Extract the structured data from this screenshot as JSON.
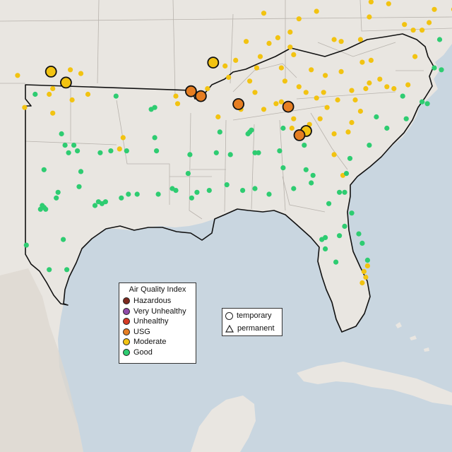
{
  "colors": {
    "water": "#c9d6e0",
    "land": "#e9e6e1",
    "terrain": "#dcd7cf",
    "state_border": "#b8b3ad",
    "outline": "#111111",
    "Hazardous": "#7e2a1f",
    "Very Unhealthy": "#8f4aa8",
    "Unhealthy": "#d63b24",
    "USG": "#e67e22",
    "Moderate": "#f2c311",
    "Good": "#2ecc71"
  },
  "aqi_legend": {
    "title": "Air Quality Index",
    "items": [
      {
        "label": "Hazardous",
        "color": "#7e2a1f"
      },
      {
        "label": "Very Unhealthy",
        "color": "#8f4aa8"
      },
      {
        "label": "Unhealthy",
        "color": "#d63b24"
      },
      {
        "label": "USG",
        "color": "#e67e22"
      },
      {
        "label": "Moderate",
        "color": "#f2c311"
      },
      {
        "label": "Good",
        "color": "#2ecc71"
      }
    ]
  },
  "shape_legend": {
    "items": [
      {
        "label": "temporary",
        "shape": "circle"
      },
      {
        "label": "permanent",
        "shape": "triangle"
      }
    ]
  },
  "monitors": {
    "large": [
      {
        "cat": "Moderate",
        "lon": -98.1,
        "lat": 36.7
      },
      {
        "cat": "Moderate",
        "lon": -97.25,
        "lat": 36.12
      },
      {
        "cat": "Moderate",
        "lon": -88.88,
        "lat": 37.18
      },
      {
        "cat": "USG",
        "lon": -90.14,
        "lat": 35.66
      },
      {
        "cat": "USG",
        "lon": -89.58,
        "lat": 35.4
      },
      {
        "cat": "USG",
        "lon": -87.44,
        "lat": 34.98
      },
      {
        "cat": "USG",
        "lon": -84.61,
        "lat": 34.84
      },
      {
        "cat": "Moderate",
        "lon": -83.59,
        "lat": 33.55
      },
      {
        "cat": "USG",
        "lon": -83.97,
        "lat": 33.33
      }
    ],
    "small": [
      {
        "cat": "Moderate",
        "lon": -100.0,
        "lat": 36.5
      },
      {
        "cat": "Moderate",
        "lon": -98.2,
        "lat": 35.5
      },
      {
        "cat": "Moderate",
        "lon": -98.0,
        "lat": 35.8
      },
      {
        "cat": "Moderate",
        "lon": -99.6,
        "lat": 34.8
      },
      {
        "cat": "Moderate",
        "lon": -98.0,
        "lat": 34.5
      },
      {
        "cat": "Moderate",
        "lon": -96.0,
        "lat": 35.5
      },
      {
        "cat": "Moderate",
        "lon": -96.4,
        "lat": 36.6
      },
      {
        "cat": "Moderate",
        "lon": -97.0,
        "lat": 36.8
      },
      {
        "cat": "Moderate",
        "lon": -96.9,
        "lat": 35.2
      },
      {
        "cat": "Moderate",
        "lon": -94.0,
        "lat": 33.2
      },
      {
        "cat": "Moderate",
        "lon": -94.2,
        "lat": 32.6
      },
      {
        "cat": "Moderate",
        "lon": -91.0,
        "lat": 35.4
      },
      {
        "cat": "Moderate",
        "lon": -90.9,
        "lat": 35.0
      },
      {
        "cat": "Moderate",
        "lon": -89.2,
        "lat": 35.8
      },
      {
        "cat": "Moderate",
        "lon": -88.0,
        "lat": 36.4
      },
      {
        "cat": "Moderate",
        "lon": -86.8,
        "lat": 36.2
      },
      {
        "cat": "Moderate",
        "lon": -86.5,
        "lat": 35.6
      },
      {
        "cat": "Moderate",
        "lon": -85.0,
        "lat": 35.1
      },
      {
        "cat": "Moderate",
        "lon": -84.0,
        "lat": 35.9
      },
      {
        "cat": "Moderate",
        "lon": -83.6,
        "lat": 35.6
      },
      {
        "cat": "Moderate",
        "lon": -82.6,
        "lat": 35.6
      },
      {
        "cat": "Moderate",
        "lon": -81.8,
        "lat": 35.2
      },
      {
        "cat": "Moderate",
        "lon": -80.8,
        "lat": 35.2
      },
      {
        "cat": "Moderate",
        "lon": -80.2,
        "lat": 35.8
      },
      {
        "cat": "Moderate",
        "lon": -79.0,
        "lat": 35.9
      },
      {
        "cat": "Moderate",
        "lon": -78.6,
        "lat": 35.8
      },
      {
        "cat": "Moderate",
        "lon": -77.8,
        "lat": 36.0
      },
      {
        "cat": "Moderate",
        "lon": -80.5,
        "lat": 34.6
      },
      {
        "cat": "Moderate",
        "lon": -81.0,
        "lat": 34.0
      },
      {
        "cat": "Moderate",
        "lon": -82.4,
        "lat": 34.8
      },
      {
        "cat": "Moderate",
        "lon": -82.0,
        "lat": 33.4
      },
      {
        "cat": "Moderate",
        "lon": -83.4,
        "lat": 33.9
      },
      {
        "cat": "Moderate",
        "lon": -84.4,
        "lat": 33.7
      },
      {
        "cat": "Moderate",
        "lon": -84.3,
        "lat": 34.2
      },
      {
        "cat": "Moderate",
        "lon": -85.3,
        "lat": 35.0
      },
      {
        "cat": "Moderate",
        "lon": -86.0,
        "lat": 34.7
      },
      {
        "cat": "Moderate",
        "lon": -87.3,
        "lat": 34.7
      },
      {
        "cat": "Moderate",
        "lon": -88.6,
        "lat": 34.3
      },
      {
        "cat": "Moderate",
        "lon": -88.2,
        "lat": 37.0
      },
      {
        "cat": "Moderate",
        "lon": -87.6,
        "lat": 37.3
      },
      {
        "cat": "Moderate",
        "lon": -86.2,
        "lat": 37.5
      },
      {
        "cat": "Moderate",
        "lon": -85.7,
        "lat": 38.2
      },
      {
        "cat": "Moderate",
        "lon": -85.2,
        "lat": 38.5
      },
      {
        "cat": "Moderate",
        "lon": -84.5,
        "lat": 38.0
      },
      {
        "cat": "Moderate",
        "lon": -84.5,
        "lat": 38.8
      },
      {
        "cat": "Moderate",
        "lon": -84.0,
        "lat": 39.5
      },
      {
        "cat": "Moderate",
        "lon": -83.0,
        "lat": 39.9
      },
      {
        "cat": "Moderate",
        "lon": -82.0,
        "lat": 38.4
      },
      {
        "cat": "Moderate",
        "lon": -81.6,
        "lat": 38.3
      },
      {
        "cat": "Moderate",
        "lon": -80.5,
        "lat": 38.4
      },
      {
        "cat": "Moderate",
        "lon": -80.0,
        "lat": 39.6
      },
      {
        "cat": "Moderate",
        "lon": -79.9,
        "lat": 40.4
      },
      {
        "cat": "Moderate",
        "lon": -81.0,
        "lat": 40.8
      },
      {
        "cat": "Moderate",
        "lon": -78.9,
        "lat": 40.3
      },
      {
        "cat": "Moderate",
        "lon": -78.0,
        "lat": 39.2
      },
      {
        "cat": "Moderate",
        "lon": -77.5,
        "lat": 38.9
      },
      {
        "cat": "Moderate",
        "lon": -77.0,
        "lat": 38.9
      },
      {
        "cat": "Moderate",
        "lon": -76.6,
        "lat": 39.3
      },
      {
        "cat": "Moderate",
        "lon": -76.3,
        "lat": 40.0
      },
      {
        "cat": "Moderate",
        "lon": -75.2,
        "lat": 40.0
      },
      {
        "cat": "Moderate",
        "lon": -77.4,
        "lat": 37.5
      },
      {
        "cat": "Moderate",
        "lon": -79.9,
        "lat": 37.3
      },
      {
        "cat": "Moderate",
        "lon": -80.4,
        "lat": 37.2
      },
      {
        "cat": "Moderate",
        "lon": -81.6,
        "lat": 36.7
      },
      {
        "cat": "Moderate",
        "lon": -82.5,
        "lat": 36.5
      },
      {
        "cat": "Moderate",
        "lon": -83.3,
        "lat": 36.8
      },
      {
        "cat": "Moderate",
        "lon": -85.0,
        "lat": 36.9
      },
      {
        "cat": "Moderate",
        "lon": -86.4,
        "lat": 36.9
      },
      {
        "cat": "Moderate",
        "lon": -84.8,
        "lat": 36.2
      },
      {
        "cat": "Moderate",
        "lon": -83.0,
        "lat": 35.3
      },
      {
        "cat": "Moderate",
        "lon": -82.8,
        "lat": 34.2
      },
      {
        "cat": "Moderate",
        "lon": -81.2,
        "lat": 33.5
      },
      {
        "cat": "Moderate",
        "lon": -82.0,
        "lat": 32.3
      },
      {
        "cat": "Moderate",
        "lon": -81.5,
        "lat": 31.2
      },
      {
        "cat": "Moderate",
        "lon": -80.3,
        "lat": 26.1
      },
      {
        "cat": "Moderate",
        "lon": -80.2,
        "lat": 25.8
      },
      {
        "cat": "Moderate",
        "lon": -80.4,
        "lat": 25.5
      },
      {
        "cat": "Moderate",
        "lon": -80.1,
        "lat": 26.4
      },
      {
        "cat": "Moderate",
        "lon": -81.0,
        "lat": 35.7
      },
      {
        "cat": "Moderate",
        "lon": -87.0,
        "lat": 38.3
      },
      {
        "cat": "Moderate",
        "lon": -86.0,
        "lat": 39.8
      },
      {
        "cat": "Moderate",
        "lon": -84.3,
        "lat": 37.6
      },
      {
        "cat": "Moderate",
        "lon": -80.0,
        "lat": 36.1
      },
      {
        "cat": "Moderate",
        "lon": -79.4,
        "lat": 36.3
      },
      {
        "cat": "Good",
        "lon": -99.0,
        "lat": 35.5
      },
      {
        "cat": "Good",
        "lon": -97.5,
        "lat": 33.4
      },
      {
        "cat": "Good",
        "lon": -97.3,
        "lat": 32.8
      },
      {
        "cat": "Good",
        "lon": -96.8,
        "lat": 32.8
      },
      {
        "cat": "Good",
        "lon": -96.6,
        "lat": 32.5
      },
      {
        "cat": "Good",
        "lon": -97.1,
        "lat": 32.4
      },
      {
        "cat": "Good",
        "lon": -98.5,
        "lat": 31.5
      },
      {
        "cat": "Good",
        "lon": -96.4,
        "lat": 31.4
      },
      {
        "cat": "Good",
        "lon": -95.3,
        "lat": 32.4
      },
      {
        "cat": "Good",
        "lon": -94.7,
        "lat": 32.5
      },
      {
        "cat": "Good",
        "lon": -97.7,
        "lat": 30.3
      },
      {
        "cat": "Good",
        "lon": -97.8,
        "lat": 30.0
      },
      {
        "cat": "Good",
        "lon": -98.5,
        "lat": 29.5
      },
      {
        "cat": "Good",
        "lon": -98.4,
        "lat": 29.4
      },
      {
        "cat": "Good",
        "lon": -98.6,
        "lat": 29.6
      },
      {
        "cat": "Good",
        "lon": -96.5,
        "lat": 30.6
      },
      {
        "cat": "Good",
        "lon": -95.4,
        "lat": 29.8
      },
      {
        "cat": "Good",
        "lon": -95.2,
        "lat": 29.7
      },
      {
        "cat": "Good",
        "lon": -95.0,
        "lat": 29.8
      },
      {
        "cat": "Good",
        "lon": -95.6,
        "lat": 29.6
      },
      {
        "cat": "Good",
        "lon": -94.1,
        "lat": 30.0
      },
      {
        "cat": "Good",
        "lon": -93.7,
        "lat": 30.2
      },
      {
        "cat": "Good",
        "lon": -93.2,
        "lat": 30.2
      },
      {
        "cat": "Good",
        "lon": -92.0,
        "lat": 30.2
      },
      {
        "cat": "Good",
        "lon": -91.2,
        "lat": 30.5
      },
      {
        "cat": "Good",
        "lon": -91.0,
        "lat": 30.4
      },
      {
        "cat": "Good",
        "lon": -90.1,
        "lat": 30.0
      },
      {
        "cat": "Good",
        "lon": -89.8,
        "lat": 30.3
      },
      {
        "cat": "Good",
        "lon": -89.1,
        "lat": 30.4
      },
      {
        "cat": "Good",
        "lon": -88.1,
        "lat": 30.7
      },
      {
        "cat": "Good",
        "lon": -87.2,
        "lat": 30.4
      },
      {
        "cat": "Good",
        "lon": -86.5,
        "lat": 30.5
      },
      {
        "cat": "Good",
        "lon": -85.7,
        "lat": 30.2
      },
      {
        "cat": "Good",
        "lon": -84.3,
        "lat": 30.5
      },
      {
        "cat": "Good",
        "lon": -83.3,
        "lat": 30.8
      },
      {
        "cat": "Good",
        "lon": -82.3,
        "lat": 29.7
      },
      {
        "cat": "Good",
        "lon": -81.7,
        "lat": 30.3
      },
      {
        "cat": "Good",
        "lon": -81.4,
        "lat": 30.3
      },
      {
        "cat": "Good",
        "lon": -81.0,
        "lat": 29.2
      },
      {
        "cat": "Good",
        "lon": -81.4,
        "lat": 28.5
      },
      {
        "cat": "Good",
        "lon": -81.7,
        "lat": 28.0
      },
      {
        "cat": "Good",
        "lon": -82.5,
        "lat": 27.9
      },
      {
        "cat": "Good",
        "lon": -82.7,
        "lat": 27.8
      },
      {
        "cat": "Good",
        "lon": -82.5,
        "lat": 27.3
      },
      {
        "cat": "Good",
        "lon": -81.9,
        "lat": 26.6
      },
      {
        "cat": "Good",
        "lon": -80.6,
        "lat": 28.1
      },
      {
        "cat": "Good",
        "lon": -80.4,
        "lat": 27.6
      },
      {
        "cat": "Good",
        "lon": -80.1,
        "lat": 26.7
      },
      {
        "cat": "Good",
        "lon": -97.4,
        "lat": 27.8
      },
      {
        "cat": "Good",
        "lon": -97.2,
        "lat": 26.2
      },
      {
        "cat": "Good",
        "lon": -99.5,
        "lat": 27.5
      },
      {
        "cat": "Good",
        "lon": -98.2,
        "lat": 26.2
      },
      {
        "cat": "Good",
        "lon": -98.7,
        "lat": 29.4
      },
      {
        "cat": "Good",
        "lon": -92.4,
        "lat": 34.7
      },
      {
        "cat": "Good",
        "lon": -92.2,
        "lat": 34.8
      },
      {
        "cat": "Good",
        "lon": -94.4,
        "lat": 35.4
      },
      {
        "cat": "Good",
        "lon": -92.2,
        "lat": 33.2
      },
      {
        "cat": "Good",
        "lon": -93.8,
        "lat": 32.5
      },
      {
        "cat": "Good",
        "lon": -92.1,
        "lat": 32.5
      },
      {
        "cat": "Good",
        "lon": -90.2,
        "lat": 32.3
      },
      {
        "cat": "Good",
        "lon": -90.3,
        "lat": 31.3
      },
      {
        "cat": "Good",
        "lon": -88.7,
        "lat": 32.4
      },
      {
        "cat": "Good",
        "lon": -88.5,
        "lat": 33.5
      },
      {
        "cat": "Good",
        "lon": -86.8,
        "lat": 33.5
      },
      {
        "cat": "Good",
        "lon": -86.9,
        "lat": 33.4
      },
      {
        "cat": "Good",
        "lon": -86.7,
        "lat": 33.6
      },
      {
        "cat": "Good",
        "lon": -86.5,
        "lat": 32.4
      },
      {
        "cat": "Good",
        "lon": -86.3,
        "lat": 32.4
      },
      {
        "cat": "Good",
        "lon": -85.1,
        "lat": 32.5
      },
      {
        "cat": "Good",
        "lon": -84.9,
        "lat": 31.6
      },
      {
        "cat": "Good",
        "lon": -83.7,
        "lat": 32.8
      },
      {
        "cat": "Good",
        "lon": -83.6,
        "lat": 31.5
      },
      {
        "cat": "Good",
        "lon": -81.1,
        "lat": 32.1
      },
      {
        "cat": "Good",
        "lon": -80.0,
        "lat": 32.8
      },
      {
        "cat": "Good",
        "lon": -79.0,
        "lat": 33.7
      },
      {
        "cat": "Good",
        "lon": -77.9,
        "lat": 34.2
      },
      {
        "cat": "Good",
        "lon": -76.7,
        "lat": 35.0
      },
      {
        "cat": "Good",
        "lon": -76.3,
        "lat": 36.9
      },
      {
        "cat": "Good",
        "lon": -75.9,
        "lat": 36.8
      },
      {
        "cat": "Good",
        "lon": -77.0,
        "lat": 35.1
      },
      {
        "cat": "Good",
        "lon": -78.1,
        "lat": 35.4
      },
      {
        "cat": "Good",
        "lon": -76.0,
        "lat": 38.4
      },
      {
        "cat": "Good",
        "lon": -81.3,
        "lat": 31.3
      },
      {
        "cat": "Good",
        "lon": -87.9,
        "lat": 32.3
      },
      {
        "cat": "Good",
        "lon": -83.2,
        "lat": 31.2
      },
      {
        "cat": "Good",
        "lon": -84.9,
        "lat": 33.7
      },
      {
        "cat": "Good",
        "lon": -79.6,
        "lat": 34.3
      }
    ]
  }
}
